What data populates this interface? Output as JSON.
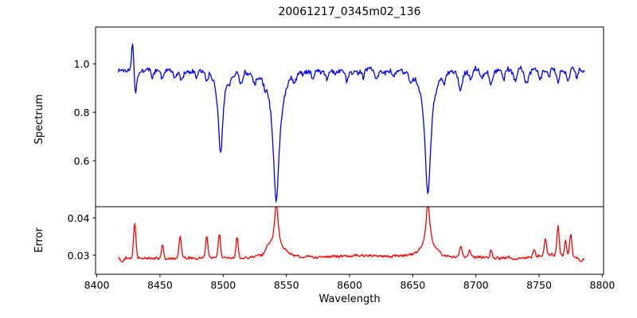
{
  "chart_data": {
    "type": "line",
    "title": "20061217_0345m02_136",
    "xlabel": "Wavelength",
    "xlim": [
      8399,
      8801
    ],
    "xticks": [
      8400,
      8450,
      8500,
      8550,
      8600,
      8650,
      8700,
      8750,
      8800
    ],
    "x_data_range": [
      8417,
      8786
    ],
    "sample_step": 0.6,
    "background_color": "#ffffff",
    "spine_color": "#000000",
    "legend": "none",
    "grid": false,
    "panels": [
      {
        "name": "spectrum",
        "ylabel": "Spectrum",
        "line_color": "#0000ff",
        "ylim": [
          0.41,
          1.152
        ],
        "yticks": [
          1.0,
          0.8,
          0.6
        ],
        "ytick_labels": [
          "1.0",
          "0.8",
          "0.6"
        ],
        "baseline": 0.975,
        "noise_white": 0.01,
        "noise_smooth": 0.01,
        "seed": 1337,
        "features_comment": "[center_wavelength, amplitude, sigma, shape g=gaussian l=lorentzian]; major absorption lines: Ca II triplet 8498 (min ~0.63), 8542 (min ~0.44), 8662 (min ~0.47); artifact spike at ~8429 (up to ~1.10, down to ~0.87)",
        "features": [
          [
            8428.4,
            0.125,
            0.9,
            "g"
          ],
          [
            8430.6,
            -0.1,
            1.0,
            "g"
          ],
          [
            8444,
            -0.028,
            1.0,
            "g"
          ],
          [
            8452,
            -0.03,
            1.0,
            "g"
          ],
          [
            8462,
            -0.025,
            1.0,
            "g"
          ],
          [
            8467,
            -0.045,
            1.2,
            "g"
          ],
          [
            8479,
            -0.028,
            1.0,
            "g"
          ],
          [
            8487,
            -0.035,
            1.0,
            "g"
          ],
          [
            8498,
            -0.345,
            2.2,
            "l"
          ],
          [
            8505,
            -0.03,
            1.0,
            "g"
          ],
          [
            8514,
            -0.04,
            1.2,
            "g"
          ],
          [
            8525,
            -0.035,
            1.1,
            "g"
          ],
          [
            8533,
            -0.028,
            1.0,
            "g"
          ],
          [
            8542,
            -0.545,
            3.1,
            "l"
          ],
          [
            8556,
            -0.028,
            1.0,
            "g"
          ],
          [
            8571,
            -0.03,
            1.0,
            "g"
          ],
          [
            8582,
            -0.04,
            1.2,
            "g"
          ],
          [
            8598,
            -0.045,
            1.2,
            "g"
          ],
          [
            8611,
            -0.028,
            1.0,
            "g"
          ],
          [
            8621,
            -0.04,
            1.1,
            "g"
          ],
          [
            8635,
            -0.03,
            1.0,
            "g"
          ],
          [
            8648,
            -0.032,
            1.0,
            "g"
          ],
          [
            8662,
            -0.515,
            2.9,
            "l"
          ],
          [
            8675,
            -0.032,
            1.0,
            "g"
          ],
          [
            8688,
            -0.075,
            1.4,
            "g"
          ],
          [
            8696,
            -0.04,
            1.1,
            "g"
          ],
          [
            8705,
            -0.028,
            1.0,
            "g"
          ],
          [
            8712,
            -0.05,
            1.2,
            "g"
          ],
          [
            8722,
            -0.03,
            1.0,
            "g"
          ],
          [
            8731,
            -0.04,
            1.1,
            "g"
          ],
          [
            8740,
            -0.055,
            1.3,
            "g"
          ],
          [
            8751,
            -0.035,
            1.0,
            "g"
          ],
          [
            8758,
            -0.04,
            1.0,
            "g"
          ],
          [
            8765,
            -0.045,
            1.1,
            "g"
          ],
          [
            8773,
            -0.05,
            1.2,
            "g"
          ],
          [
            8780,
            -0.032,
            1.0,
            "g"
          ]
        ]
      },
      {
        "name": "error",
        "ylabel": "Error",
        "line_color": "#ff0000",
        "ylim": [
          0.0249,
          0.043
        ],
        "yticks": [
          0.04,
          0.03
        ],
        "ytick_labels": [
          "0.04",
          "0.03"
        ],
        "baseline": 0.0292,
        "noise_white": 0.00032,
        "noise_smooth": 0.0003,
        "seed": 2024,
        "features_comment": "error peaks mirror spectral lines: ~0.039 at 8430, ~0.042 at 8542 and 8662, spike cluster ~0.034-0.037 near 8755-8776, baseline ~0.029",
        "features": [
          [
            8420,
            -0.001,
            1.2,
            "g"
          ],
          [
            8430,
            0.0095,
            0.9,
            "g"
          ],
          [
            8452,
            0.0038,
            0.8,
            "g"
          ],
          [
            8466,
            0.0058,
            0.9,
            "g"
          ],
          [
            8487,
            0.006,
            0.9,
            "g"
          ],
          [
            8497,
            0.0065,
            0.9,
            "g"
          ],
          [
            8511,
            0.0052,
            0.9,
            "g"
          ],
          [
            8536,
            0.0015,
            1.5,
            "g"
          ],
          [
            8542,
            0.0125,
            1.9,
            "l"
          ],
          [
            8542,
            0.0018,
            7.0,
            "g"
          ],
          [
            8620,
            0.0006,
            50.0,
            "g"
          ],
          [
            8662,
            0.0124,
            1.9,
            "l"
          ],
          [
            8662,
            0.0018,
            7.0,
            "g"
          ],
          [
            8688,
            0.0032,
            1.0,
            "g"
          ],
          [
            8695,
            0.0018,
            0.9,
            "g"
          ],
          [
            8712,
            0.0018,
            0.9,
            "g"
          ],
          [
            8746,
            0.0018,
            1.0,
            "g"
          ],
          [
            8755,
            0.0042,
            0.9,
            "g"
          ],
          [
            8761,
            0.001,
            10.0,
            "g"
          ],
          [
            8765,
            0.0078,
            0.9,
            "g"
          ],
          [
            8771,
            0.0042,
            0.8,
            "g"
          ],
          [
            8775,
            0.0062,
            0.9,
            "g"
          ],
          [
            8783,
            -0.0008,
            1.5,
            "g"
          ]
        ]
      }
    ]
  }
}
